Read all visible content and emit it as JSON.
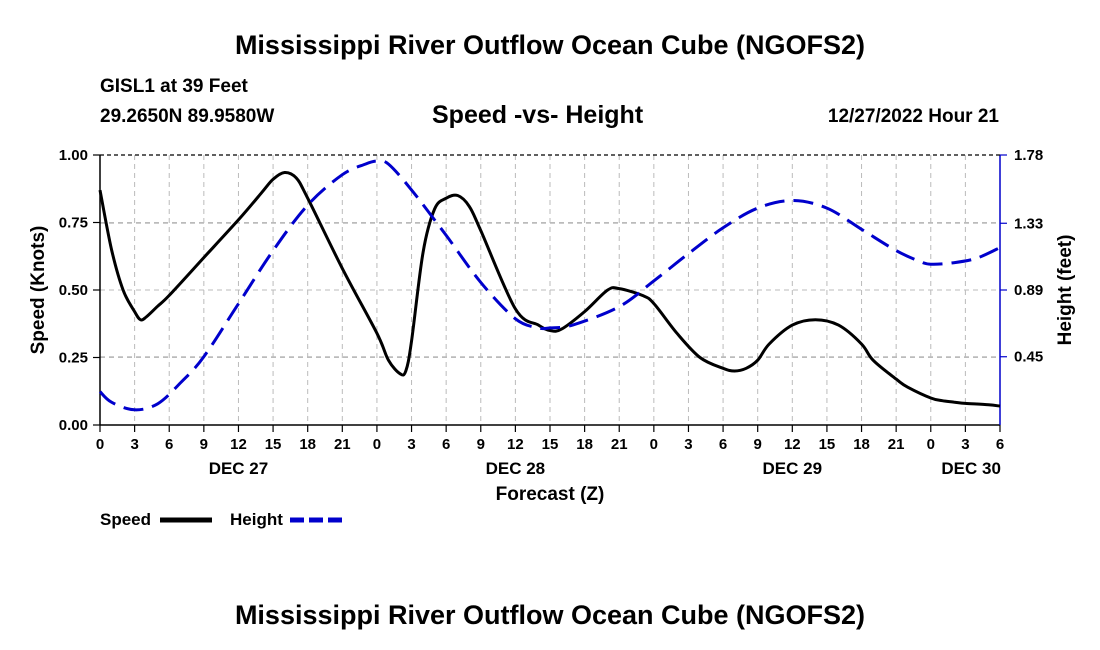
{
  "page": {
    "title_top": "Mississippi River Outflow Ocean Cube (NGOFS2)",
    "title_bottom": "Mississippi River Outflow Ocean Cube (NGOFS2)",
    "station": "GISL1 at 39 Feet",
    "coords": "29.2650N  89.9580W",
    "subtitle": "Speed -vs- Height",
    "datetime": "12/27/2022 Hour 21"
  },
  "chart_data": {
    "type": "line",
    "title": "Speed -vs- Height",
    "xlabel": "Forecast (Z)",
    "ylabel": "Speed (Knots)",
    "y2label": "Height (feet)",
    "xlim": [
      0,
      78
    ],
    "ylim": [
      0,
      1.0
    ],
    "y2lim": [
      0,
      1.78
    ],
    "x_ticks": [
      0,
      3,
      6,
      9,
      12,
      15,
      18,
      21,
      24,
      27,
      30,
      33,
      36,
      39,
      42,
      45,
      48,
      51,
      54,
      57,
      60,
      63,
      66,
      69,
      72,
      75,
      78
    ],
    "x_tick_labels": [
      "0",
      "3",
      "6",
      "9",
      "12",
      "15",
      "18",
      "21",
      "0",
      "3",
      "6",
      "9",
      "12",
      "15",
      "18",
      "21",
      "0",
      "3",
      "6",
      "9",
      "12",
      "15",
      "18",
      "21",
      "0",
      "3",
      "6"
    ],
    "day_labels": [
      {
        "x": 12,
        "label": "DEC 27"
      },
      {
        "x": 36,
        "label": "DEC 28"
      },
      {
        "x": 60,
        "label": "DEC 29"
      },
      {
        "x": 75.5,
        "label": "DEC 30"
      }
    ],
    "y_ticks": [
      0.0,
      0.25,
      0.5,
      0.75,
      1.0
    ],
    "y_tick_labels": [
      "0.00",
      "0.25",
      "0.50",
      "0.75",
      "1.00"
    ],
    "y2_ticks": [
      0.45,
      0.89,
      1.33,
      1.78
    ],
    "y2_tick_labels": [
      "0.45",
      "0.89",
      "1.33",
      "1.78"
    ],
    "grid": true,
    "series": [
      {
        "name": "Speed",
        "axis": "left",
        "color": "#000000",
        "dash": "solid",
        "x": [
          0,
          1,
          2,
          3,
          3.5,
          4,
          5,
          6,
          9,
          12,
          14,
          15,
          16,
          17,
          18,
          21,
          24,
          25,
          26,
          26.5,
          27,
          28,
          29,
          30,
          31,
          32,
          33,
          36,
          38,
          39,
          40,
          42,
          44,
          45,
          47,
          48,
          50,
          52,
          54,
          55,
          56,
          57,
          58,
          60,
          62,
          64,
          66,
          67,
          69,
          70,
          72,
          73,
          74,
          75,
          77,
          78
        ],
        "values": [
          0.87,
          0.65,
          0.5,
          0.42,
          0.39,
          0.4,
          0.44,
          0.48,
          0.62,
          0.76,
          0.86,
          0.91,
          0.935,
          0.915,
          0.84,
          0.58,
          0.34,
          0.24,
          0.19,
          0.2,
          0.31,
          0.64,
          0.8,
          0.84,
          0.85,
          0.81,
          0.72,
          0.43,
          0.37,
          0.35,
          0.355,
          0.42,
          0.5,
          0.505,
          0.48,
          0.45,
          0.34,
          0.25,
          0.21,
          0.2,
          0.21,
          0.24,
          0.3,
          0.37,
          0.39,
          0.37,
          0.3,
          0.24,
          0.17,
          0.14,
          0.1,
          0.09,
          0.085,
          0.08,
          0.075,
          0.07
        ]
      },
      {
        "name": "Height",
        "axis": "right",
        "color": "#0000cc",
        "dash": "dashed",
        "x": [
          0,
          1,
          3,
          5,
          7,
          9,
          12,
          15,
          18,
          21,
          23,
          24,
          25,
          27,
          30,
          33,
          36,
          38,
          39,
          41,
          45,
          48,
          51,
          54,
          57,
          60,
          63,
          66,
          69,
          71,
          72,
          74,
          76,
          78
        ],
        "values": [
          0.22,
          0.15,
          0.1,
          0.14,
          0.28,
          0.45,
          0.8,
          1.15,
          1.45,
          1.65,
          1.72,
          1.74,
          1.72,
          1.55,
          1.25,
          0.94,
          0.7,
          0.64,
          0.64,
          0.66,
          0.78,
          0.95,
          1.13,
          1.3,
          1.43,
          1.48,
          1.43,
          1.29,
          1.15,
          1.08,
          1.06,
          1.07,
          1.1,
          1.17
        ]
      }
    ],
    "legend": {
      "placement": "bottom-left",
      "entries": [
        {
          "label": "Speed",
          "color": "#000000",
          "dash": "solid"
        },
        {
          "label": "Height",
          "color": "#0000cc",
          "dash": "dashed"
        }
      ]
    }
  }
}
